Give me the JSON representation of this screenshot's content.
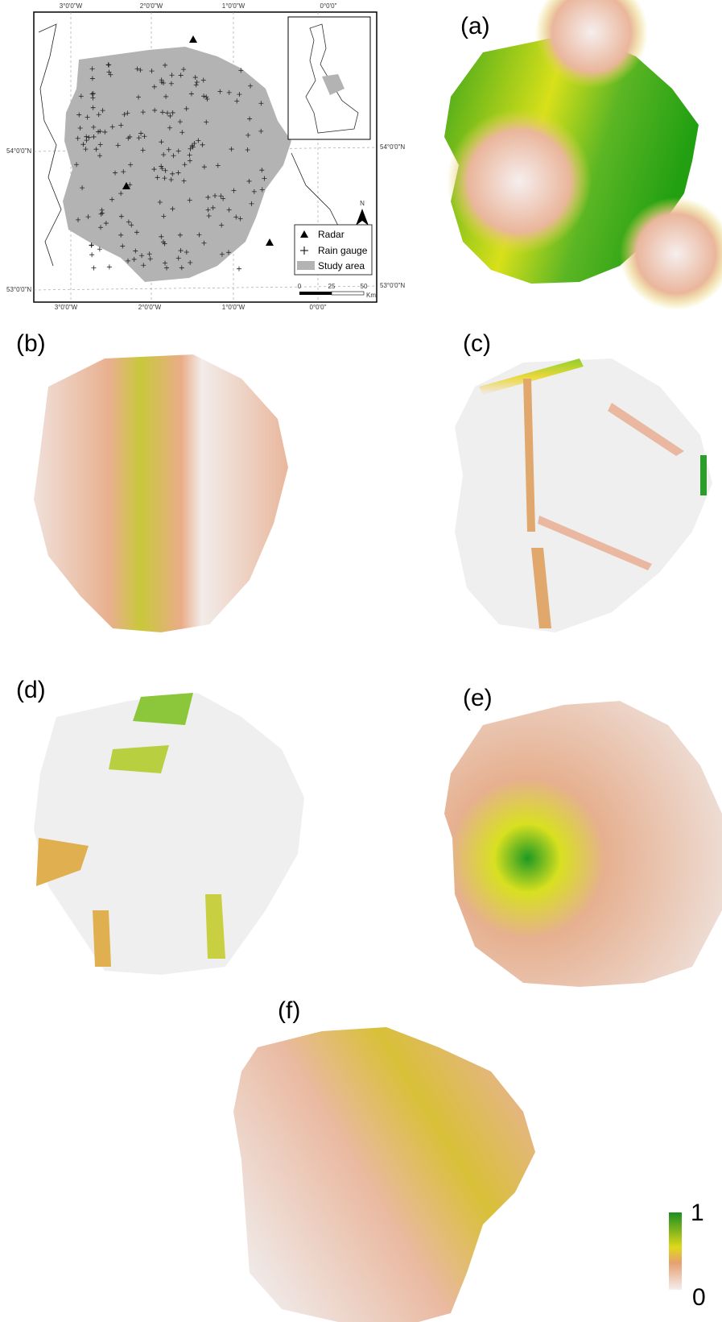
{
  "map": {
    "x_labels_top": [
      "3°0'0\"W",
      "2°0'0\"W",
      "1°0'0\"W",
      "0°0'0\""
    ],
    "x_labels_bottom": [
      "3°0'0\"W",
      "2°0'0\"W",
      "1°0'0\"W",
      "0°0'0\""
    ],
    "y_labels_left": [
      "54°0'0\"N",
      "53°0'0\"N"
    ],
    "y_labels_right": [
      "54°0'0\"N",
      "53°0'0\"N"
    ],
    "legend": [
      "Radar",
      "Rain gauge",
      "Study area"
    ],
    "scale": [
      "0",
      "25",
      "50",
      "Km"
    ],
    "north": "N"
  },
  "panels": [
    "(a)",
    "(b)",
    "(c)",
    "(d)",
    "(e)",
    "(f)"
  ],
  "colorbar": {
    "max": "1",
    "min": "0"
  }
}
